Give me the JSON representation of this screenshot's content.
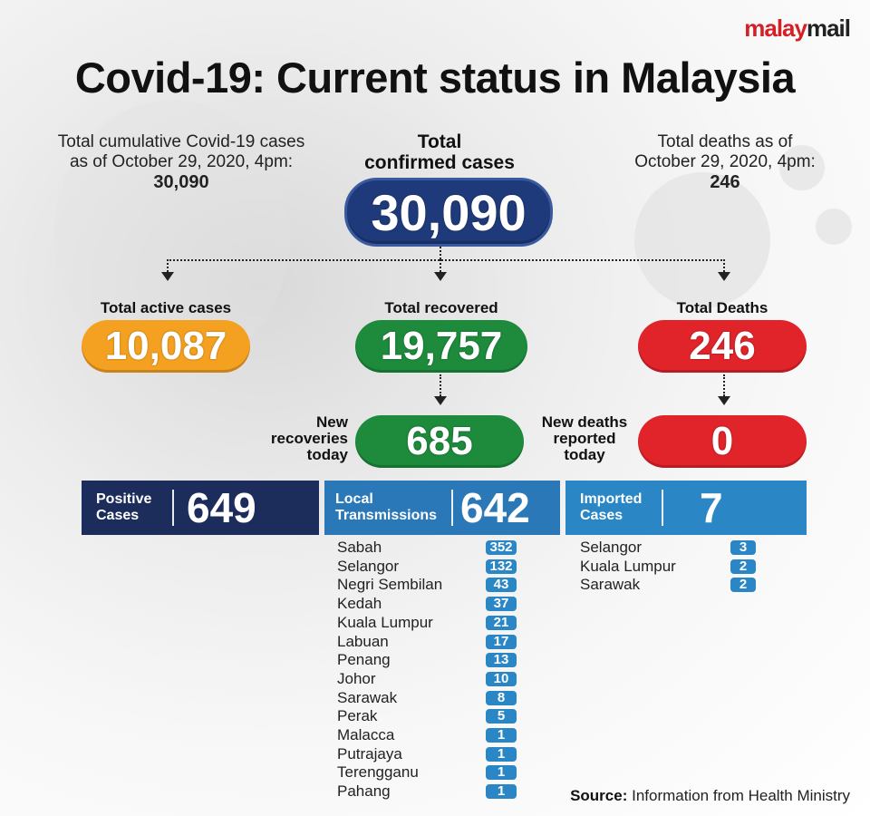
{
  "logo": {
    "part1": "malay",
    "part2": "mail"
  },
  "title": "Covid-19: Current status in Malaysia",
  "cumulative": {
    "line1": "Total cumulative Covid-19 cases",
    "line2": "as of October 29, 2020, 4pm:",
    "value": "30,090"
  },
  "confirmed": {
    "line1": "Total",
    "line2": "confirmed cases",
    "value": "30,090"
  },
  "deaths_info": {
    "line1": "Total deaths as of",
    "line2": "October 29, 2020, 4pm:",
    "value": "246"
  },
  "active": {
    "label": "Total active cases",
    "value": "10,087"
  },
  "recovered": {
    "label": "Total recovered",
    "value": "19,757"
  },
  "total_deaths": {
    "label": "Total Deaths",
    "value": "246"
  },
  "new_recoveries": {
    "line1": "New",
    "line2": "recoveries",
    "line3": "today",
    "value": "685"
  },
  "new_deaths": {
    "line1": "New deaths",
    "line2": "reported",
    "line3": "today",
    "value": "0"
  },
  "positive": {
    "line1": "Positive",
    "line2": "Cases",
    "value": "649"
  },
  "local": {
    "line1": "Local",
    "line2": "Transmissions",
    "value": "642"
  },
  "imported": {
    "line1": "Imported",
    "line2": "Cases",
    "value": "7"
  },
  "local_list": [
    {
      "state": "Sabah",
      "count": "352"
    },
    {
      "state": "Selangor",
      "count": "132"
    },
    {
      "state": "Negri Sembilan",
      "count": "43"
    },
    {
      "state": "Kedah",
      "count": "37"
    },
    {
      "state": "Kuala Lumpur",
      "count": "21"
    },
    {
      "state": "Labuan",
      "count": "17"
    },
    {
      "state": "Penang",
      "count": "13"
    },
    {
      "state": "Johor",
      "count": "10"
    },
    {
      "state": "Sarawak",
      "count": "8"
    },
    {
      "state": "Perak",
      "count": "5"
    },
    {
      "state": "Malacca",
      "count": "1"
    },
    {
      "state": "Putrajaya",
      "count": "1"
    },
    {
      "state": "Terengganu",
      "count": "1"
    },
    {
      "state": "Pahang",
      "count": "1"
    }
  ],
  "imported_list": [
    {
      "state": "Selangor",
      "count": "3"
    },
    {
      "state": "Kuala Lumpur",
      "count": "2"
    },
    {
      "state": "Sarawak",
      "count": "2"
    }
  ],
  "source": {
    "label": "Source:",
    "text": "Information from Health Ministry"
  },
  "colors": {
    "navy": "#1c2d5c",
    "blue": "#2a86c5",
    "orange": "#f4a020",
    "green": "#1d8a3c",
    "red": "#e0242a"
  }
}
